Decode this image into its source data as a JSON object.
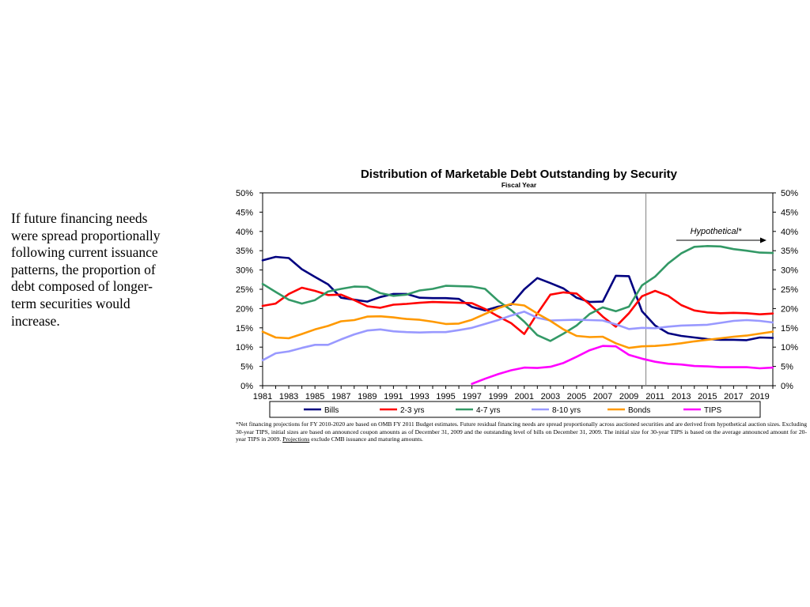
{
  "side_text": "If future financing needs were spread proportionally following current issuance patterns, the proportion of debt composed of longer-term securities would increase.",
  "chart_data": {
    "type": "line",
    "title": "Distribution of Marketable Debt Outstanding by Security",
    "subtitle": "Fiscal Year",
    "xlabel": "",
    "ylabel": "",
    "ylim": [
      0,
      50
    ],
    "y_ticks": [
      "0%",
      "5%",
      "10%",
      "15%",
      "20%",
      "25%",
      "30%",
      "35%",
      "40%",
      "45%",
      "50%"
    ],
    "y_tick_values": [
      0,
      5,
      10,
      15,
      20,
      25,
      30,
      35,
      40,
      45,
      50
    ],
    "x_ticks": [
      "1981",
      "1983",
      "1985",
      "1987",
      "1989",
      "1991",
      "1993",
      "1995",
      "1997",
      "1999",
      "2001",
      "2003",
      "2005",
      "2007",
      "2009",
      "2011",
      "2013",
      "2015",
      "2017",
      "2019"
    ],
    "xlim": [
      1981,
      2020
    ],
    "grid": false,
    "legend_position": "bottom",
    "vertical_line_x": 2010.3,
    "annotation": "Hypothetical*",
    "series": [
      {
        "name": "Bills",
        "color": "#000080",
        "x": [
          1981,
          1982,
          1983,
          1984,
          1985,
          1986,
          1987,
          1988,
          1989,
          1990,
          1991,
          1992,
          1993,
          1994,
          1995,
          1996,
          1997,
          1998,
          1999,
          2000,
          2001,
          2002,
          2003,
          2004,
          2005,
          2006,
          2007,
          2008,
          2009,
          2010,
          2011,
          2012,
          2013,
          2014,
          2015,
          2016,
          2017,
          2018,
          2019,
          2020
        ],
        "values": [
          32.5,
          33.4,
          33.1,
          30.2,
          28.2,
          26.3,
          22.8,
          22.3,
          21.8,
          23.0,
          23.8,
          23.8,
          22.8,
          22.7,
          22.7,
          22.5,
          20.4,
          19.5,
          20.5,
          21.0,
          25.0,
          27.9,
          26.6,
          25.2,
          22.8,
          21.7,
          21.8,
          28.5,
          28.4,
          19.3,
          15.6,
          13.6,
          12.9,
          12.5,
          12.1,
          11.9,
          11.9,
          11.8,
          12.5,
          12.4
        ]
      },
      {
        "name": "2-3 yrs",
        "color": "#FF0000",
        "x": [
          1981,
          1982,
          1983,
          1984,
          1985,
          1986,
          1987,
          1988,
          1989,
          1990,
          1991,
          1992,
          1993,
          1994,
          1995,
          1996,
          1997,
          1998,
          1999,
          2000,
          2001,
          2002,
          2003,
          2004,
          2005,
          2006,
          2007,
          2008,
          2009,
          2010,
          2011,
          2012,
          2013,
          2014,
          2015,
          2016,
          2017,
          2018,
          2019,
          2020
        ],
        "values": [
          20.7,
          21.3,
          23.8,
          25.4,
          24.6,
          23.5,
          23.6,
          22.2,
          20.6,
          20.2,
          21.0,
          21.2,
          21.5,
          21.7,
          21.6,
          21.5,
          21.4,
          19.9,
          18.0,
          16.2,
          13.4,
          18.7,
          23.6,
          24.2,
          23.9,
          21.1,
          17.9,
          15.3,
          18.8,
          23.2,
          24.6,
          23.3,
          20.9,
          19.5,
          19.0,
          18.8,
          18.9,
          18.8,
          18.5,
          18.7
        ]
      },
      {
        "name": "4-7 yrs",
        "color": "#339966",
        "x": [
          1981,
          1982,
          1983,
          1984,
          1985,
          1986,
          1987,
          1988,
          1989,
          1990,
          1991,
          1992,
          1993,
          1994,
          1995,
          1996,
          1997,
          1998,
          1999,
          2000,
          2001,
          2002,
          2003,
          2004,
          2005,
          2006,
          2007,
          2008,
          2009,
          2010,
          2011,
          2012,
          2013,
          2014,
          2015,
          2016,
          2017,
          2018,
          2019,
          2020
        ],
        "values": [
          26.4,
          24.3,
          22.3,
          21.3,
          22.2,
          24.4,
          25.1,
          25.7,
          25.6,
          24.0,
          23.3,
          23.6,
          24.7,
          25.1,
          25.9,
          25.8,
          25.7,
          25.1,
          22.0,
          19.6,
          16.6,
          13.1,
          11.6,
          13.5,
          15.6,
          18.6,
          20.3,
          19.3,
          20.5,
          26.0,
          28.3,
          31.7,
          34.3,
          36.0,
          36.2,
          36.1,
          35.4,
          35.0,
          34.5,
          34.4
        ]
      },
      {
        "name": "8-10 yrs",
        "color": "#9999FF",
        "x": [
          1981,
          1982,
          1983,
          1984,
          1985,
          1986,
          1987,
          1988,
          1989,
          1990,
          1991,
          1992,
          1993,
          1994,
          1995,
          1996,
          1997,
          1998,
          1999,
          2000,
          2001,
          2002,
          2003,
          2004,
          2005,
          2006,
          2007,
          2008,
          2009,
          2010,
          2011,
          2012,
          2013,
          2014,
          2015,
          2016,
          2017,
          2018,
          2019,
          2020
        ],
        "values": [
          6.6,
          8.4,
          8.9,
          9.8,
          10.6,
          10.6,
          12.0,
          13.3,
          14.3,
          14.6,
          14.1,
          13.9,
          13.8,
          13.9,
          13.9,
          14.4,
          15.0,
          16.0,
          17.0,
          18.2,
          19.2,
          17.6,
          16.9,
          17.0,
          17.1,
          17.0,
          16.9,
          15.9,
          14.7,
          15.0,
          14.9,
          15.3,
          15.6,
          15.7,
          15.8,
          16.3,
          16.8,
          17.0,
          16.8,
          16.4
        ]
      },
      {
        "name": "Bonds",
        "color": "#FF9900",
        "x": [
          1981,
          1982,
          1983,
          1984,
          1985,
          1986,
          1987,
          1988,
          1989,
          1990,
          1991,
          1992,
          1993,
          1994,
          1995,
          1996,
          1997,
          1998,
          1999,
          2000,
          2001,
          2002,
          2003,
          2004,
          2005,
          2006,
          2007,
          2008,
          2009,
          2010,
          2011,
          2012,
          2013,
          2014,
          2015,
          2016,
          2017,
          2018,
          2019,
          2020
        ],
        "values": [
          14.0,
          12.5,
          12.3,
          13.4,
          14.6,
          15.5,
          16.7,
          17.0,
          17.9,
          18.0,
          17.7,
          17.3,
          17.1,
          16.6,
          16.0,
          16.1,
          17.1,
          18.6,
          20.1,
          21.2,
          20.8,
          18.7,
          16.8,
          14.6,
          12.9,
          12.6,
          12.7,
          11.0,
          9.8,
          10.2,
          10.3,
          10.6,
          11.0,
          11.5,
          11.9,
          12.3,
          12.7,
          13.0,
          13.5,
          14.0
        ]
      },
      {
        "name": "TIPS",
        "color": "#FF00FF",
        "x": [
          1997,
          1998,
          1999,
          2000,
          2001,
          2002,
          2003,
          2004,
          2005,
          2006,
          2007,
          2008,
          2009,
          2010,
          2011,
          2012,
          2013,
          2014,
          2015,
          2016,
          2017,
          2018,
          2019,
          2020
        ],
        "values": [
          0.5,
          1.8,
          3.0,
          4.0,
          4.7,
          4.6,
          4.9,
          5.9,
          7.5,
          9.2,
          10.3,
          10.2,
          8.0,
          7.0,
          6.2,
          5.7,
          5.5,
          5.1,
          5.0,
          4.8,
          4.8,
          4.8,
          4.5,
          4.7
        ]
      }
    ]
  },
  "footnote": {
    "part1": "*Net financing projections for FY 2010-2020 are based on OMB FY 2011 Budget estimates. Future residual financing needs are spread proportionally across auctioned securities and are derived from hypothetical auction sizes. Excluding 30-year TIPS, initial sizes are based on announced coupon amounts as of December 31, 2009 and the outstanding level of bills on December 31, 2009. The initial size for 30-year TIPS is based on the average announced amount for 20-year TIPS in 2009. ",
    "underlined": "Projections",
    "part2": " exclude CMB issuance and maturing amounts."
  }
}
